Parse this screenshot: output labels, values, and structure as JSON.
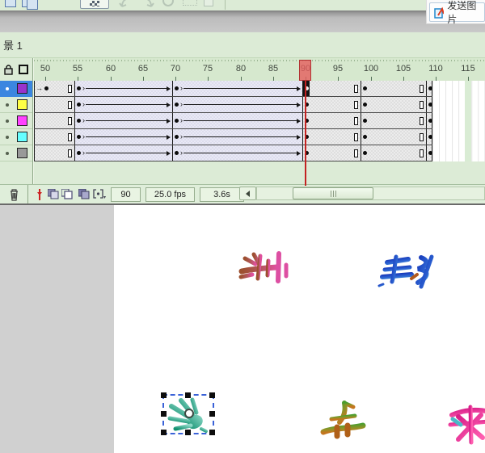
{
  "chrome": {
    "send_button": {
      "label": "发送图片",
      "icon": "send-image-icon"
    },
    "toolbar_icons": [
      "panel-icon",
      "panels-icon",
      "snap-grid-button",
      "undo-icon",
      "redo-icon",
      "loop-icon",
      "marquee-icon",
      "clipboard-icon"
    ]
  },
  "scene": {
    "label": "景 1"
  },
  "timeline": {
    "header_icons": [
      "lock-icon",
      "outline-square-icon"
    ],
    "layers": [
      {
        "swatch": "#9933cc",
        "selected": true
      },
      {
        "swatch": "#ffff44",
        "selected": false
      },
      {
        "swatch": "#ff44ff",
        "selected": false
      },
      {
        "swatch": "#66ffff",
        "selected": false
      },
      {
        "swatch": "#999999",
        "selected": false
      }
    ],
    "ruler": {
      "numbers": [
        50,
        55,
        60,
        65,
        70,
        75,
        80,
        85,
        90,
        95,
        100,
        105,
        110,
        115
      ],
      "frame_width": 8.05
    },
    "current_frame_marker": 90,
    "row_segments": [
      {
        "from": 48.8,
        "to": 55,
        "type": "static",
        "end_rect": true,
        "first_key": true
      },
      {
        "from": 55,
        "to": 70,
        "type": "tween"
      },
      {
        "from": 70,
        "to": 90,
        "type": "tween"
      },
      {
        "from": 90,
        "to": 99,
        "type": "static",
        "dot": true,
        "end_rect": true,
        "current": true
      },
      {
        "from": 99,
        "to": 109,
        "type": "static",
        "dot": true,
        "end_rect": true
      },
      {
        "from": 109,
        "to": 110,
        "type": "static",
        "dot": true,
        "last": true
      }
    ],
    "empty_area": {
      "from": 110,
      "to": 119,
      "stripe_frames": [
        115
      ]
    },
    "status": {
      "current_frame": "90",
      "fps": "25.0 fps",
      "elapsed": "3.6s"
    },
    "bottom_icons": [
      "delete-layer-icon",
      "center-frame-icon",
      "onion-skin-icon",
      "onion-skin-outline-icon",
      "edit-multiple-frames-icon",
      "modify-markers-icon"
    ]
  },
  "stage": {
    "artworks": [
      {
        "id": "glyph-brown-pink",
        "desc": "flipped character art",
        "colors": [
          "#9c4f2e",
          "#e0509e"
        ]
      },
      {
        "id": "glyph-blue",
        "desc": "flipped character art",
        "colors": [
          "#1535b8",
          "#3a7fd6",
          "#b05a20"
        ]
      },
      {
        "id": "glyph-teal-selected",
        "desc": "flipped character art (selected)",
        "colors": [
          "#0f8f6f",
          "#8fd9c8"
        ]
      },
      {
        "id": "glyph-green-orange",
        "desc": "flipped character art",
        "colors": [
          "#4a9e2f",
          "#c4761f"
        ]
      },
      {
        "id": "glyph-magenta",
        "desc": "flipped character art (clipped at edge)",
        "colors": [
          "#d81f8a",
          "#ff5fb0",
          "#4ab8c8"
        ]
      }
    ],
    "selection": {
      "handles": 8,
      "accent": "#3a62d8"
    }
  }
}
